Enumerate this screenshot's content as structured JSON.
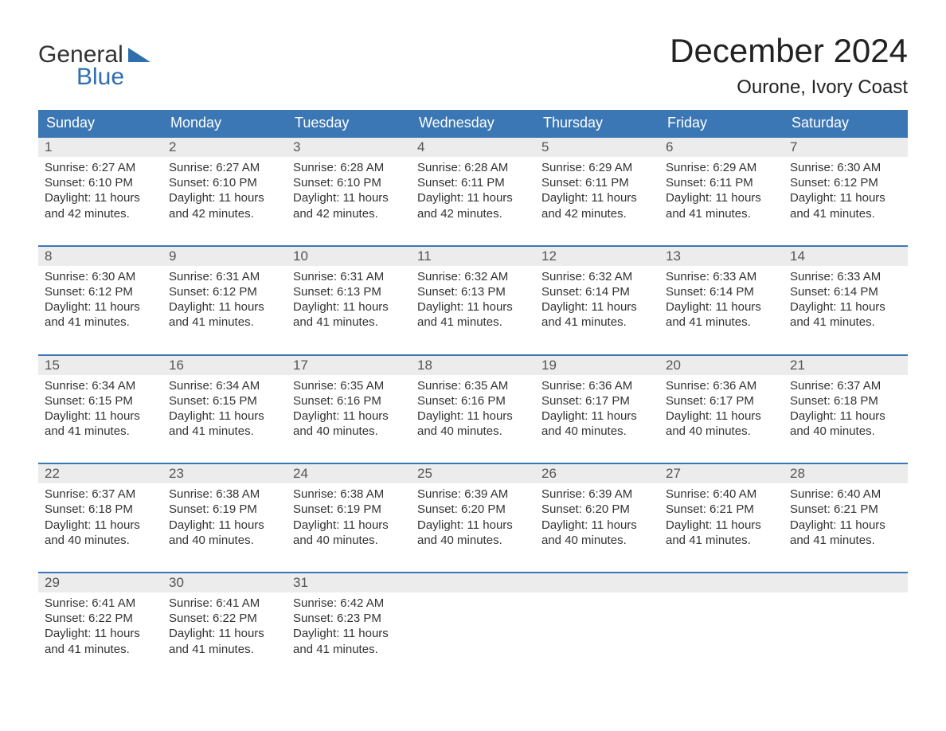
{
  "colors": {
    "brand_blue": "#3b77b5",
    "logo_blue": "#2f6fad",
    "header_text": "#ffffff",
    "daynum_bg": "#ececec",
    "daynum_text": "#555555",
    "body_text": "#333333",
    "bg": "#ffffff",
    "week_border": "#3b77b5"
  },
  "typography": {
    "month_title_pt": 42,
    "location_pt": 24,
    "day_header_pt": 18,
    "daynum_pt": 17,
    "cell_body_pt": 15,
    "logo_pt": 30,
    "font_family": "Arial"
  },
  "logo": {
    "line1": "General",
    "line2": "Blue"
  },
  "title": "December 2024",
  "location": "Ourone, Ivory Coast",
  "calendar": {
    "type": "table",
    "columns": [
      "Sunday",
      "Monday",
      "Tuesday",
      "Wednesday",
      "Thursday",
      "Friday",
      "Saturday"
    ],
    "weeks": [
      [
        {
          "day": "1",
          "sunrise": "Sunrise: 6:27 AM",
          "sunset": "Sunset: 6:10 PM",
          "dl1": "Daylight: 11 hours",
          "dl2": "and 42 minutes."
        },
        {
          "day": "2",
          "sunrise": "Sunrise: 6:27 AM",
          "sunset": "Sunset: 6:10 PM",
          "dl1": "Daylight: 11 hours",
          "dl2": "and 42 minutes."
        },
        {
          "day": "3",
          "sunrise": "Sunrise: 6:28 AM",
          "sunset": "Sunset: 6:10 PM",
          "dl1": "Daylight: 11 hours",
          "dl2": "and 42 minutes."
        },
        {
          "day": "4",
          "sunrise": "Sunrise: 6:28 AM",
          "sunset": "Sunset: 6:11 PM",
          "dl1": "Daylight: 11 hours",
          "dl2": "and 42 minutes."
        },
        {
          "day": "5",
          "sunrise": "Sunrise: 6:29 AM",
          "sunset": "Sunset: 6:11 PM",
          "dl1": "Daylight: 11 hours",
          "dl2": "and 42 minutes."
        },
        {
          "day": "6",
          "sunrise": "Sunrise: 6:29 AM",
          "sunset": "Sunset: 6:11 PM",
          "dl1": "Daylight: 11 hours",
          "dl2": "and 41 minutes."
        },
        {
          "day": "7",
          "sunrise": "Sunrise: 6:30 AM",
          "sunset": "Sunset: 6:12 PM",
          "dl1": "Daylight: 11 hours",
          "dl2": "and 41 minutes."
        }
      ],
      [
        {
          "day": "8",
          "sunrise": "Sunrise: 6:30 AM",
          "sunset": "Sunset: 6:12 PM",
          "dl1": "Daylight: 11 hours",
          "dl2": "and 41 minutes."
        },
        {
          "day": "9",
          "sunrise": "Sunrise: 6:31 AM",
          "sunset": "Sunset: 6:12 PM",
          "dl1": "Daylight: 11 hours",
          "dl2": "and 41 minutes."
        },
        {
          "day": "10",
          "sunrise": "Sunrise: 6:31 AM",
          "sunset": "Sunset: 6:13 PM",
          "dl1": "Daylight: 11 hours",
          "dl2": "and 41 minutes."
        },
        {
          "day": "11",
          "sunrise": "Sunrise: 6:32 AM",
          "sunset": "Sunset: 6:13 PM",
          "dl1": "Daylight: 11 hours",
          "dl2": "and 41 minutes."
        },
        {
          "day": "12",
          "sunrise": "Sunrise: 6:32 AM",
          "sunset": "Sunset: 6:14 PM",
          "dl1": "Daylight: 11 hours",
          "dl2": "and 41 minutes."
        },
        {
          "day": "13",
          "sunrise": "Sunrise: 6:33 AM",
          "sunset": "Sunset: 6:14 PM",
          "dl1": "Daylight: 11 hours",
          "dl2": "and 41 minutes."
        },
        {
          "day": "14",
          "sunrise": "Sunrise: 6:33 AM",
          "sunset": "Sunset: 6:14 PM",
          "dl1": "Daylight: 11 hours",
          "dl2": "and 41 minutes."
        }
      ],
      [
        {
          "day": "15",
          "sunrise": "Sunrise: 6:34 AM",
          "sunset": "Sunset: 6:15 PM",
          "dl1": "Daylight: 11 hours",
          "dl2": "and 41 minutes."
        },
        {
          "day": "16",
          "sunrise": "Sunrise: 6:34 AM",
          "sunset": "Sunset: 6:15 PM",
          "dl1": "Daylight: 11 hours",
          "dl2": "and 41 minutes."
        },
        {
          "day": "17",
          "sunrise": "Sunrise: 6:35 AM",
          "sunset": "Sunset: 6:16 PM",
          "dl1": "Daylight: 11 hours",
          "dl2": "and 40 minutes."
        },
        {
          "day": "18",
          "sunrise": "Sunrise: 6:35 AM",
          "sunset": "Sunset: 6:16 PM",
          "dl1": "Daylight: 11 hours",
          "dl2": "and 40 minutes."
        },
        {
          "day": "19",
          "sunrise": "Sunrise: 6:36 AM",
          "sunset": "Sunset: 6:17 PM",
          "dl1": "Daylight: 11 hours",
          "dl2": "and 40 minutes."
        },
        {
          "day": "20",
          "sunrise": "Sunrise: 6:36 AM",
          "sunset": "Sunset: 6:17 PM",
          "dl1": "Daylight: 11 hours",
          "dl2": "and 40 minutes."
        },
        {
          "day": "21",
          "sunrise": "Sunrise: 6:37 AM",
          "sunset": "Sunset: 6:18 PM",
          "dl1": "Daylight: 11 hours",
          "dl2": "and 40 minutes."
        }
      ],
      [
        {
          "day": "22",
          "sunrise": "Sunrise: 6:37 AM",
          "sunset": "Sunset: 6:18 PM",
          "dl1": "Daylight: 11 hours",
          "dl2": "and 40 minutes."
        },
        {
          "day": "23",
          "sunrise": "Sunrise: 6:38 AM",
          "sunset": "Sunset: 6:19 PM",
          "dl1": "Daylight: 11 hours",
          "dl2": "and 40 minutes."
        },
        {
          "day": "24",
          "sunrise": "Sunrise: 6:38 AM",
          "sunset": "Sunset: 6:19 PM",
          "dl1": "Daylight: 11 hours",
          "dl2": "and 40 minutes."
        },
        {
          "day": "25",
          "sunrise": "Sunrise: 6:39 AM",
          "sunset": "Sunset: 6:20 PM",
          "dl1": "Daylight: 11 hours",
          "dl2": "and 40 minutes."
        },
        {
          "day": "26",
          "sunrise": "Sunrise: 6:39 AM",
          "sunset": "Sunset: 6:20 PM",
          "dl1": "Daylight: 11 hours",
          "dl2": "and 40 minutes."
        },
        {
          "day": "27",
          "sunrise": "Sunrise: 6:40 AM",
          "sunset": "Sunset: 6:21 PM",
          "dl1": "Daylight: 11 hours",
          "dl2": "and 41 minutes."
        },
        {
          "day": "28",
          "sunrise": "Sunrise: 6:40 AM",
          "sunset": "Sunset: 6:21 PM",
          "dl1": "Daylight: 11 hours",
          "dl2": "and 41 minutes."
        }
      ],
      [
        {
          "day": "29",
          "sunrise": "Sunrise: 6:41 AM",
          "sunset": "Sunset: 6:22 PM",
          "dl1": "Daylight: 11 hours",
          "dl2": "and 41 minutes."
        },
        {
          "day": "30",
          "sunrise": "Sunrise: 6:41 AM",
          "sunset": "Sunset: 6:22 PM",
          "dl1": "Daylight: 11 hours",
          "dl2": "and 41 minutes."
        },
        {
          "day": "31",
          "sunrise": "Sunrise: 6:42 AM",
          "sunset": "Sunset: 6:23 PM",
          "dl1": "Daylight: 11 hours",
          "dl2": "and 41 minutes."
        },
        null,
        null,
        null,
        null
      ]
    ]
  }
}
